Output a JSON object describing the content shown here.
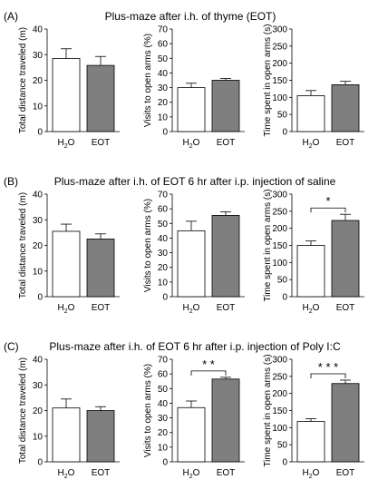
{
  "colors": {
    "h2o_fill": "#ffffff",
    "eot_fill": "#7f7f7f",
    "stroke": "#000000"
  },
  "panels": [
    {
      "letter": "(A)",
      "title": "Plus-maze after i.h. of thyme (EOT)"
    },
    {
      "letter": "(B)",
      "title": "Plus-maze after i.h. of EOT 6 hr after i.p. injection of saline"
    },
    {
      "letter": "(C)",
      "title": "Plus-maze after i.h. of EOT 6 hr after i.p. injection of Poly I:C"
    }
  ],
  "chart_data": [
    {
      "type": "bar",
      "categories": [
        "H2O",
        "EOT"
      ],
      "values": [
        28.5,
        25.8
      ],
      "errors": [
        3.8,
        3.5
      ],
      "ylabel": "Total distance traveled (m)",
      "ylim": [
        0,
        40
      ],
      "yticks": [
        0,
        10,
        20,
        30,
        40
      ],
      "significance": ""
    },
    {
      "type": "bar",
      "categories": [
        "H2O",
        "EOT"
      ],
      "values": [
        30,
        35
      ],
      "errors": [
        3,
        1.2
      ],
      "ylabel": "Visits to open arms (%)",
      "ylim": [
        0,
        70
      ],
      "yticks": [
        0,
        10,
        20,
        30,
        40,
        50,
        60,
        70
      ],
      "significance": ""
    },
    {
      "type": "bar",
      "categories": [
        "H2O",
        "EOT"
      ],
      "values": [
        105,
        137
      ],
      "errors": [
        15,
        10
      ],
      "ylabel": "Time spent in open arms (s)",
      "ylim": [
        0,
        300
      ],
      "yticks": [
        0,
        50,
        100,
        150,
        200,
        250,
        300
      ],
      "significance": ""
    },
    {
      "type": "bar",
      "categories": [
        "H2O",
        "EOT"
      ],
      "values": [
        25.5,
        22.5
      ],
      "errors": [
        2.8,
        2
      ],
      "ylabel": "Total distance traveled (m)",
      "ylim": [
        0,
        40
      ],
      "yticks": [
        0,
        10,
        20,
        30,
        40
      ],
      "significance": ""
    },
    {
      "type": "bar",
      "categories": [
        "H2O",
        "EOT"
      ],
      "values": [
        45,
        55.5
      ],
      "errors": [
        6.5,
        2.5
      ],
      "ylabel": "Visits to open arms (%)",
      "ylim": [
        0,
        70
      ],
      "yticks": [
        0,
        10,
        20,
        30,
        40,
        50,
        60,
        70
      ],
      "significance": ""
    },
    {
      "type": "bar",
      "categories": [
        "H2O",
        "EOT"
      ],
      "values": [
        150,
        223
      ],
      "errors": [
        13,
        18
      ],
      "ylabel": "Time spent in open arms (s)",
      "ylim": [
        0,
        300
      ],
      "yticks": [
        0,
        50,
        100,
        150,
        200,
        250,
        300
      ],
      "significance": "*"
    },
    {
      "type": "bar",
      "categories": [
        "H2O",
        "EOT"
      ],
      "values": [
        21,
        20
      ],
      "errors": [
        3.5,
        1.5
      ],
      "ylabel": "Total distance traveled (m)",
      "ylim": [
        0,
        40
      ],
      "yticks": [
        0,
        10,
        20,
        30,
        40
      ],
      "significance": ""
    },
    {
      "type": "bar",
      "categories": [
        "H2O",
        "EOT"
      ],
      "values": [
        37,
        56.5
      ],
      "errors": [
        4.5,
        1.2
      ],
      "ylabel": "Visits to open arms (%)",
      "ylim": [
        0,
        70
      ],
      "yticks": [
        0,
        10,
        20,
        30,
        40,
        50,
        60,
        70
      ],
      "significance": "* *"
    },
    {
      "type": "bar",
      "categories": [
        "H2O",
        "EOT"
      ],
      "values": [
        118,
        229
      ],
      "errors": [
        8,
        10
      ],
      "ylabel": "Time spent in open arms (s)",
      "ylim": [
        0,
        300
      ],
      "yticks": [
        0,
        50,
        100,
        150,
        200,
        250,
        300
      ],
      "significance": "* * *"
    }
  ]
}
